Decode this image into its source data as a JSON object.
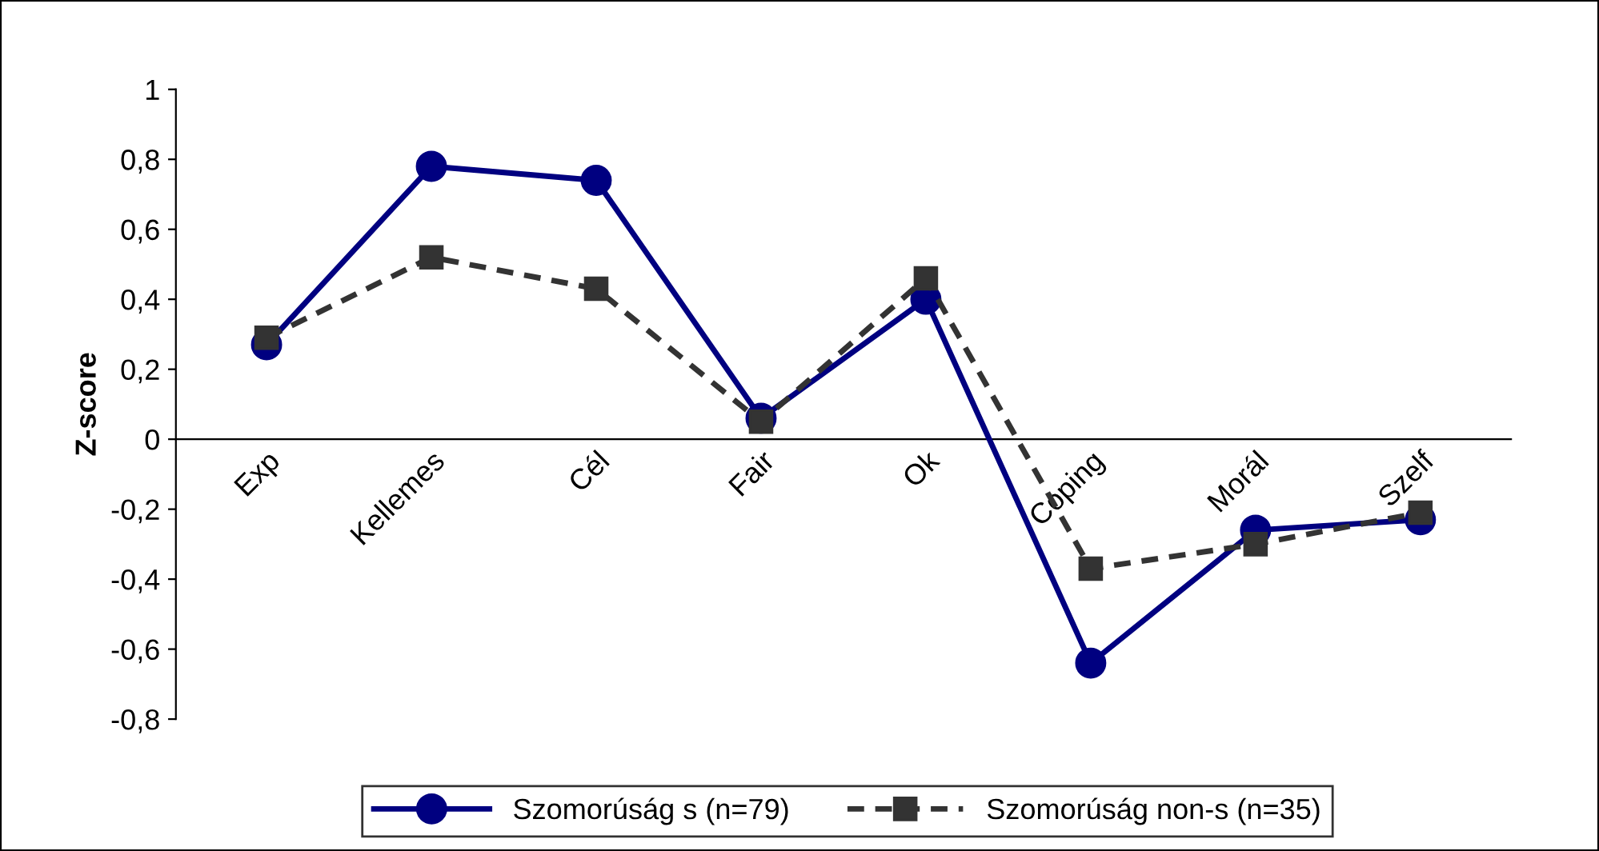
{
  "chart_data": {
    "type": "line",
    "ylabel": "Z-score",
    "categories": [
      "Exp",
      "Kellemes",
      "Cél",
      "Fair",
      "Ok",
      "Coping",
      "Morál",
      "Szelf"
    ],
    "series": [
      {
        "name": "Szomorúság s (n=79)",
        "color": "#000080",
        "marker": "circle",
        "line_style": "solid",
        "values": [
          0.27,
          0.78,
          0.74,
          0.06,
          0.4,
          -0.64,
          -0.26,
          -0.23
        ]
      },
      {
        "name": "Szomorúság non-s (n=35)",
        "color": "#333333",
        "marker": "square",
        "line_style": "dashed",
        "values": [
          0.29,
          0.52,
          0.43,
          0.05,
          0.46,
          -0.37,
          -0.3,
          -0.21
        ]
      }
    ],
    "ylim": [
      -0.8,
      1
    ],
    "yticks": [
      {
        "value": -0.8,
        "label": "-0,8"
      },
      {
        "value": -0.6,
        "label": "-0,6"
      },
      {
        "value": -0.4,
        "label": "-0,4"
      },
      {
        "value": -0.2,
        "label": "-0,2"
      },
      0,
      {
        "value": 0.2,
        "label": "0,2"
      },
      {
        "value": 0.4,
        "label": "0,4"
      },
      {
        "value": 0.6,
        "label": "0,6"
      },
      {
        "value": 0.8,
        "label": "0,8"
      },
      1
    ],
    "grid": false,
    "legend": "bottom"
  }
}
